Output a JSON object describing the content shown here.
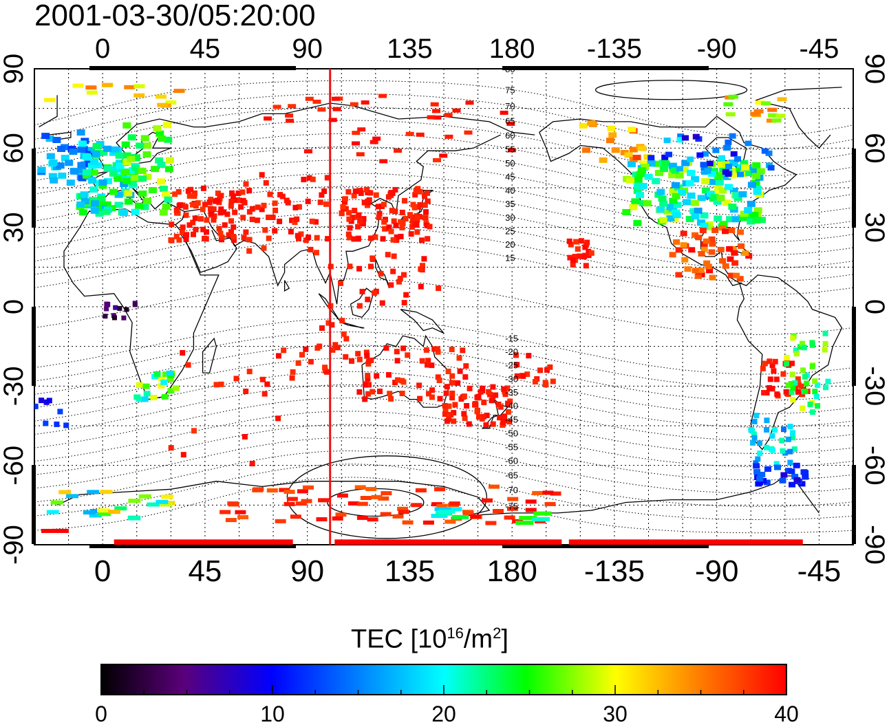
{
  "title": "2001-03-30/05:20:00",
  "map": {
    "top_axis_labels": [
      "0",
      "45",
      "90",
      "135",
      "180",
      "-135",
      "-90",
      "-45"
    ],
    "bottom_axis_labels": [
      "0",
      "45",
      "90",
      "135",
      "180",
      "-135",
      "-90",
      "-45"
    ],
    "left_axis_labels": [
      "90",
      "60",
      "30",
      "0",
      "-30",
      "-60",
      "-90"
    ],
    "right_axis_labels": [
      "90",
      "60",
      "30",
      "0",
      "-30",
      "-60",
      "-90"
    ],
    "meridian_longitude_east": 100,
    "contour_labels_north": [
      "80",
      "75",
      "70",
      "65",
      "60",
      "55",
      "50",
      "45",
      "40",
      "35",
      "30",
      "25",
      "20",
      "15"
    ],
    "contour_labels_south": [
      "-15",
      "-20",
      "-25",
      "-30",
      "-35",
      "-40",
      "-45",
      "-50",
      "-55",
      "-60",
      "-65",
      "-70",
      "-75"
    ],
    "grid": true,
    "colors": {
      "frame": "#000000",
      "meridian": "#ee1111",
      "coast": "#000000"
    }
  },
  "colorbar": {
    "title_prefix": "TEC  [10",
    "title_sup1": "16",
    "title_mid": "/m",
    "title_sup2": "2",
    "title_suffix": "]",
    "min": 0,
    "max": 40,
    "tick_labels": [
      "0",
      "10",
      "20",
      "30",
      "40"
    ],
    "colors": [
      "#000000",
      "#5a007a",
      "#0000ff",
      "#00ffff",
      "#00ff00",
      "#ffff00",
      "#ff8000",
      "#ff0000"
    ]
  }
}
